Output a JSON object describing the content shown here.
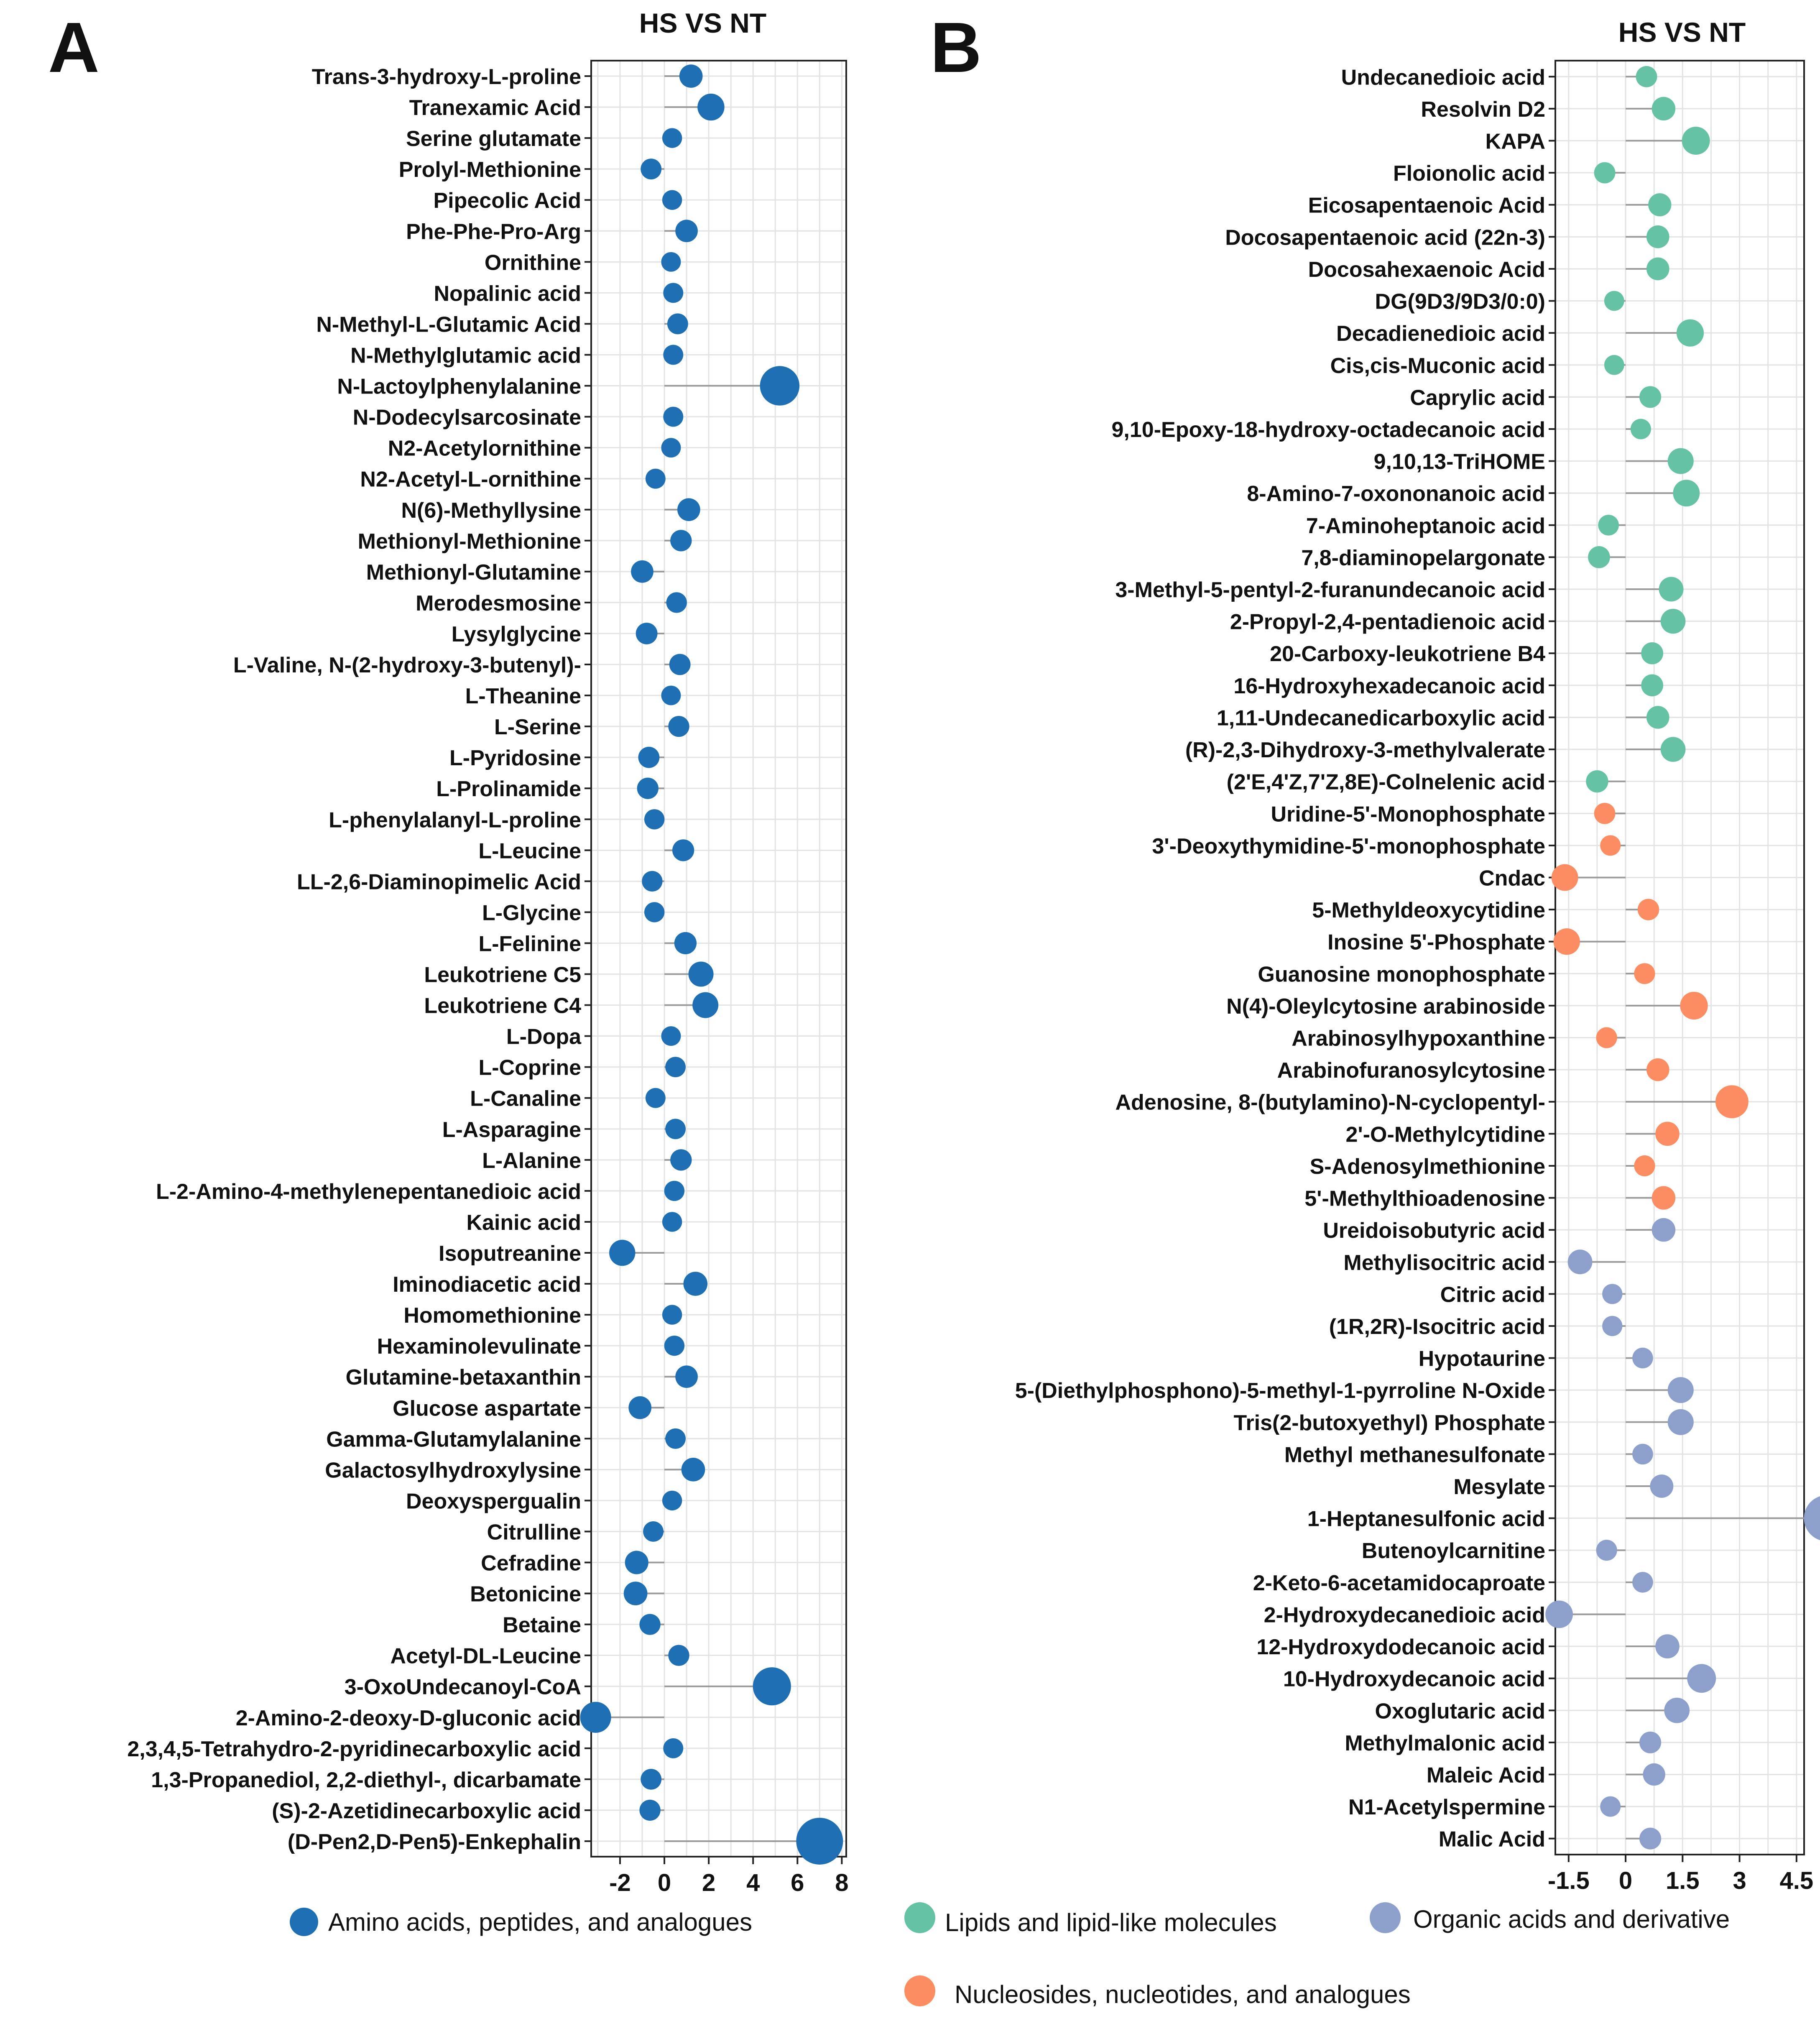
{
  "chart_data": [
    {
      "panel_label": "A",
      "type": "scatter",
      "title": "HS VS NT",
      "xlim": [
        -3.3,
        8.2
      ],
      "xticks": [
        -2,
        0,
        2,
        4,
        6,
        8
      ],
      "xtick_labels": [
        "-2",
        "0",
        "2",
        "4",
        "6",
        "8"
      ],
      "grid": true,
      "legend": [
        {
          "name": "Amino acids, peptides, and analogues",
          "color": "#1f6fb4"
        }
      ],
      "points": [
        {
          "name": "Trans-3-hydroxy-L-proline",
          "value": 1.2,
          "group": 0
        },
        {
          "name": "Tranexamic Acid",
          "value": 2.1,
          "group": 0
        },
        {
          "name": "Serine glutamate",
          "value": 0.35,
          "group": 0
        },
        {
          "name": "Prolyl-Methionine",
          "value": -0.6,
          "group": 0
        },
        {
          "name": "Pipecolic Acid",
          "value": 0.35,
          "group": 0
        },
        {
          "name": "Phe-Phe-Pro-Arg",
          "value": 1.0,
          "group": 0
        },
        {
          "name": "Ornithine",
          "value": 0.3,
          "group": 0
        },
        {
          "name": "Nopalinic acid",
          "value": 0.4,
          "group": 0
        },
        {
          "name": "N-Methyl-L-Glutamic Acid",
          "value": 0.6,
          "group": 0
        },
        {
          "name": "N-Methylglutamic acid",
          "value": 0.4,
          "group": 0
        },
        {
          "name": "N-Lactoylphenylalanine",
          "value": 5.2,
          "group": 0
        },
        {
          "name": "N-Dodecylsarcosinate",
          "value": 0.4,
          "group": 0
        },
        {
          "name": "N2-Acetylornithine",
          "value": 0.3,
          "group": 0
        },
        {
          "name": "N2-Acetyl-L-ornithine",
          "value": -0.4,
          "group": 0
        },
        {
          "name": "N(6)-Methyllysine",
          "value": 1.1,
          "group": 0
        },
        {
          "name": "Methionyl-Methionine",
          "value": 0.75,
          "group": 0
        },
        {
          "name": "Methionyl-Glutamine",
          "value": -1.0,
          "group": 0
        },
        {
          "name": "Merodesmosine",
          "value": 0.55,
          "group": 0
        },
        {
          "name": "Lysylglycine",
          "value": -0.8,
          "group": 0
        },
        {
          "name": "L-Valine, N-(2-hydroxy-3-butenyl)-",
          "value": 0.7,
          "group": 0
        },
        {
          "name": "L-Theanine",
          "value": 0.3,
          "group": 0
        },
        {
          "name": "L-Serine",
          "value": 0.65,
          "group": 0
        },
        {
          "name": "L-Pyridosine",
          "value": -0.7,
          "group": 0
        },
        {
          "name": "L-Prolinamide",
          "value": -0.75,
          "group": 0
        },
        {
          "name": "L-phenylalanyl-L-proline",
          "value": -0.45,
          "group": 0
        },
        {
          "name": "L-Leucine",
          "value": 0.85,
          "group": 0
        },
        {
          "name": "LL-2,6-Diaminopimelic Acid",
          "value": -0.55,
          "group": 0
        },
        {
          "name": "L-Glycine",
          "value": -0.45,
          "group": 0
        },
        {
          "name": "L-Felinine",
          "value": 0.95,
          "group": 0
        },
        {
          "name": "Leukotriene C5",
          "value": 1.65,
          "group": 0
        },
        {
          "name": "Leukotriene C4",
          "value": 1.85,
          "group": 0
        },
        {
          "name": "L-Dopa",
          "value": 0.3,
          "group": 0
        },
        {
          "name": "L-Coprine",
          "value": 0.5,
          "group": 0
        },
        {
          "name": "L-Canaline",
          "value": -0.4,
          "group": 0
        },
        {
          "name": "L-Asparagine",
          "value": 0.5,
          "group": 0
        },
        {
          "name": "L-Alanine",
          "value": 0.75,
          "group": 0
        },
        {
          "name": "L-2-Amino-4-methylenepentanedioic acid",
          "value": 0.45,
          "group": 0
        },
        {
          "name": "Kainic acid",
          "value": 0.35,
          "group": 0
        },
        {
          "name": "Isoputreanine",
          "value": -1.9,
          "group": 0
        },
        {
          "name": "Iminodiacetic acid",
          "value": 1.4,
          "group": 0
        },
        {
          "name": "Homomethionine",
          "value": 0.35,
          "group": 0
        },
        {
          "name": "Hexaminolevulinate",
          "value": 0.45,
          "group": 0
        },
        {
          "name": "Glutamine-betaxanthin",
          "value": 1.0,
          "group": 0
        },
        {
          "name": "Glucose aspartate",
          "value": -1.1,
          "group": 0
        },
        {
          "name": "Gamma-Glutamylalanine",
          "value": 0.5,
          "group": 0
        },
        {
          "name": "Galactosylhydroxylysine",
          "value": 1.3,
          "group": 0
        },
        {
          "name": "Deoxyspergualin",
          "value": 0.35,
          "group": 0
        },
        {
          "name": "Citrulline",
          "value": -0.5,
          "group": 0
        },
        {
          "name": "Cefradine",
          "value": -1.25,
          "group": 0
        },
        {
          "name": "Betonicine",
          "value": -1.3,
          "group": 0
        },
        {
          "name": "Betaine",
          "value": -0.65,
          "group": 0
        },
        {
          "name": "Acetyl-DL-Leucine",
          "value": 0.65,
          "group": 0
        },
        {
          "name": "3-OxoUndecanoyl-CoA",
          "value": 4.85,
          "group": 0
        },
        {
          "name": "2-Amino-2-deoxy-D-gluconic acid",
          "value": -3.1,
          "group": 0
        },
        {
          "name": "2,3,4,5-Tetrahydro-2-pyridinecarboxylic acid",
          "value": 0.4,
          "group": 0
        },
        {
          "name": "1,3-Propanediol, 2,2-diethyl-, dicarbamate",
          "value": -0.6,
          "group": 0
        },
        {
          "name": "(S)-2-Azetidinecarboxylic acid",
          "value": -0.65,
          "group": 0
        },
        {
          "name": "(D-Pen2,D-Pen5)-Enkephalin",
          "value": 7.0,
          "group": 0
        }
      ]
    },
    {
      "panel_label": "B",
      "type": "scatter",
      "title": "HS VS NT",
      "xlim": [
        -1.85,
        4.7
      ],
      "xticks": [
        -1.5,
        0,
        1.5,
        3,
        4.5
      ],
      "xtick_labels": [
        "-1.5",
        "0",
        "1.5",
        "3",
        "4.5"
      ],
      "grid": true,
      "legend": [
        {
          "name": "Lipids and lipid-like molecules",
          "color": "#66c2a5"
        },
        {
          "name": "Organic acids and derivative",
          "color": "#8da0cb"
        },
        {
          "name": "Nucleosides, nucleotides, and analogues",
          "color": "#fc8d62"
        }
      ],
      "points": [
        {
          "name": "Undecanedioic acid",
          "value": 0.55,
          "group": 0
        },
        {
          "name": "Resolvin D2",
          "value": 1.0,
          "group": 0
        },
        {
          "name": "KAPA",
          "value": 1.85,
          "group": 0
        },
        {
          "name": "Floionolic acid",
          "value": -0.55,
          "group": 0
        },
        {
          "name": "Eicosapentaenoic Acid",
          "value": 0.9,
          "group": 0
        },
        {
          "name": "Docosapentaenoic acid (22n-3)",
          "value": 0.85,
          "group": 0
        },
        {
          "name": "Docosahexaenoic Acid",
          "value": 0.85,
          "group": 0
        },
        {
          "name": "DG(9D3/9D3/0:0)",
          "value": -0.3,
          "group": 0
        },
        {
          "name": "Decadienedioic acid",
          "value": 1.7,
          "group": 0
        },
        {
          "name": "Cis,cis-Muconic acid",
          "value": -0.3,
          "group": 0
        },
        {
          "name": "Caprylic acid",
          "value": 0.65,
          "group": 0
        },
        {
          "name": "9,10-Epoxy-18-hydroxy-octadecanoic acid",
          "value": 0.4,
          "group": 0
        },
        {
          "name": "9,10,13-TriHOME",
          "value": 1.45,
          "group": 0
        },
        {
          "name": "8-Amino-7-oxononanoic acid",
          "value": 1.6,
          "group": 0
        },
        {
          "name": "7-Aminoheptanoic acid",
          "value": -0.45,
          "group": 0
        },
        {
          "name": "7,8-diaminopelargonate",
          "value": -0.7,
          "group": 0
        },
        {
          "name": "3-Methyl-5-pentyl-2-furanundecanoic acid",
          "value": 1.2,
          "group": 0
        },
        {
          "name": "2-Propyl-2,4-pentadienoic acid",
          "value": 1.25,
          "group": 0
        },
        {
          "name": "20-Carboxy-leukotriene B4",
          "value": 0.7,
          "group": 0
        },
        {
          "name": "16-Hydroxyhexadecanoic acid",
          "value": 0.7,
          "group": 0
        },
        {
          "name": "1,11-Undecanedicarboxylic acid",
          "value": 0.85,
          "group": 0
        },
        {
          "name": "(R)-2,3-Dihydroxy-3-methylvalerate",
          "value": 1.25,
          "group": 0
        },
        {
          "name": "(2'E,4'Z,7'Z,8E)-Colnelenic acid",
          "value": -0.75,
          "group": 0
        },
        {
          "name": "Uridine-5'-Monophosphate",
          "value": -0.55,
          "group": 2
        },
        {
          "name": "3'-Deoxythymidine-5'-monophosphate",
          "value": -0.4,
          "group": 2
        },
        {
          "name": "Cndac",
          "value": -1.6,
          "group": 2
        },
        {
          "name": "5-Methyldeoxycytidine",
          "value": 0.6,
          "group": 2
        },
        {
          "name": "Inosine 5'-Phosphate",
          "value": -1.55,
          "group": 2
        },
        {
          "name": "Guanosine monophosphate",
          "value": 0.5,
          "group": 2
        },
        {
          "name": "N(4)-Oleylcytosine arabinoside",
          "value": 1.8,
          "group": 2
        },
        {
          "name": "Arabinosylhypoxanthine",
          "value": -0.5,
          "group": 2
        },
        {
          "name": "Arabinofuranosylcytosine",
          "value": 0.85,
          "group": 2
        },
        {
          "name": "Adenosine, 8-(butylamino)-N-cyclopentyl-",
          "value": 2.8,
          "group": 2
        },
        {
          "name": "2'-O-Methylcytidine",
          "value": 1.1,
          "group": 2
        },
        {
          "name": "S-Adenosylmethionine",
          "value": 0.5,
          "group": 2
        },
        {
          "name": "5'-Methylthioadenosine",
          "value": 1.0,
          "group": 2
        },
        {
          "name": "Ureidoisobutyric acid",
          "value": 1.0,
          "group": 1
        },
        {
          "name": "Methylisocitric acid",
          "value": -1.2,
          "group": 1
        },
        {
          "name": "Citric acid",
          "value": -0.35,
          "group": 1
        },
        {
          "name": "(1R,2R)-Isocitric acid",
          "value": -0.35,
          "group": 1
        },
        {
          "name": "Hypotaurine",
          "value": 0.45,
          "group": 1
        },
        {
          "name": "5-(Diethylphosphono)-5-methyl-1-pyrroline N-Oxide",
          "value": 1.45,
          "group": 1
        },
        {
          "name": "Tris(2-butoxyethyl) Phosphate",
          "value": 1.45,
          "group": 1
        },
        {
          "name": "Methyl methanesulfonate",
          "value": 0.45,
          "group": 1
        },
        {
          "name": "Mesylate",
          "value": 0.95,
          "group": 1
        },
        {
          "name": "1-Heptanesulfonic acid",
          "value": 5.3,
          "group": 1
        },
        {
          "name": "Butenoylcarnitine",
          "value": -0.5,
          "group": 1
        },
        {
          "name": "2-Keto-6-acetamidocaproate",
          "value": 0.45,
          "group": 1
        },
        {
          "name": "2-Hydroxydecanedioic acid",
          "value": -1.75,
          "group": 1
        },
        {
          "name": "12-Hydroxydodecanoic acid",
          "value": 1.1,
          "group": 1
        },
        {
          "name": "10-Hydroxydecanoic acid",
          "value": 2.0,
          "group": 1
        },
        {
          "name": "Oxoglutaric acid",
          "value": 1.35,
          "group": 1
        },
        {
          "name": "Methylmalonic acid",
          "value": 0.65,
          "group": 1
        },
        {
          "name": "Maleic Acid",
          "value": 0.75,
          "group": 1
        },
        {
          "name": "N1-Acetylspermine",
          "value": -0.4,
          "group": 1
        },
        {
          "name": "Malic Acid",
          "value": 0.65,
          "group": 1
        }
      ]
    }
  ]
}
